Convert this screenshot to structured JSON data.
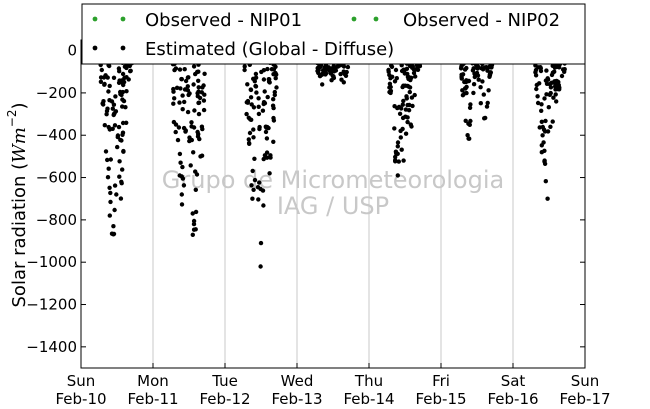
{
  "chart_data": {
    "type": "scatter",
    "ylabel_text": "Solar radiation (",
    "ylabel_unit": "Wm",
    "ylabel_exp": "−2",
    "ylabel_close": ")",
    "ylim": [
      -1500,
      50
    ],
    "yticks": [
      0,
      -200,
      -400,
      -600,
      -800,
      -1000,
      -1200,
      -1400
    ],
    "xlim": [
      10,
      17
    ],
    "xticks": [
      {
        "day": 10,
        "dow": "Sun",
        "date": "Feb-10"
      },
      {
        "day": 11,
        "dow": "Mon",
        "date": "Feb-11"
      },
      {
        "day": 12,
        "dow": "Tue",
        "date": "Feb-12"
      },
      {
        "day": 13,
        "dow": "Wed",
        "date": "Feb-13"
      },
      {
        "day": 14,
        "dow": "Thu",
        "date": "Feb-14"
      },
      {
        "day": 15,
        "dow": "Fri",
        "date": "Feb-15"
      },
      {
        "day": 16,
        "dow": "Sat",
        "date": "Feb-16"
      },
      {
        "day": 17,
        "dow": "Sun",
        "date": "Feb-17"
      }
    ],
    "grid": "x-only",
    "legend_placement": "top",
    "series": [
      {
        "name": "Observed - NIP01",
        "color": "#2ca02c",
        "points": []
      },
      {
        "name": "Observed - NIP02",
        "color": "#2ca02c",
        "points": []
      },
      {
        "name": "Estimated (Global - Diffuse)",
        "color": "#000000",
        "days": [
          {
            "start": 10.27,
            "end": 10.72,
            "min": [
              [
                10.45,
                -830
              ],
              [
                10.4,
                -780
              ],
              [
                10.56,
                -620
              ],
              [
                10.3,
                -250
              ]
            ]
          },
          {
            "start": 11.27,
            "end": 11.72,
            "min": [
              [
                11.57,
                -820
              ],
              [
                11.4,
                -680
              ],
              [
                11.66,
                -500
              ],
              [
                11.32,
                -350
              ]
            ]
          },
          {
            "start": 12.27,
            "end": 12.72,
            "min": [
              [
                12.5,
                -910
              ],
              [
                12.38,
                -700
              ],
              [
                12.62,
                -580
              ],
              [
                12.3,
                -300
              ]
            ]
          },
          {
            "start": 13.27,
            "end": 13.72,
            "min": [
              [
                13.35,
                -160
              ],
              [
                13.48,
                -140
              ],
              [
                13.65,
                -150
              ]
            ]
          },
          {
            "start": 14.27,
            "end": 14.72,
            "min": [
              [
                14.4,
                -590
              ],
              [
                14.48,
                -520
              ],
              [
                14.58,
                -350
              ],
              [
                14.3,
                -200
              ]
            ]
          },
          {
            "start": 15.27,
            "end": 15.72,
            "min": [
              [
                15.37,
                -400
              ],
              [
                15.6,
                -320
              ],
              [
                15.45,
                -200
              ]
            ]
          },
          {
            "start": 16.27,
            "end": 16.72,
            "min": [
              [
                16.48,
                -700
              ],
              [
                16.4,
                -480
              ],
              [
                16.6,
                -240
              ],
              [
                16.68,
                -120
              ]
            ]
          }
        ]
      }
    ],
    "watermark": [
      "Grupo de Micrometeorologia",
      "IAG / USP"
    ]
  }
}
